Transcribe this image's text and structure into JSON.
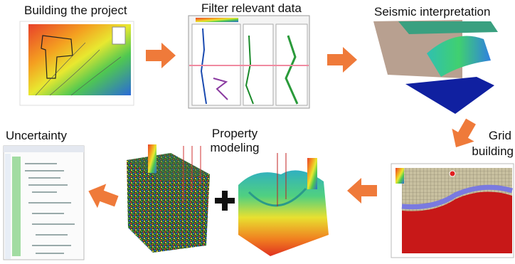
{
  "steps": [
    {
      "lines": [
        "Building the project"
      ]
    },
    {
      "lines": [
        "Filter relevant data"
      ]
    },
    {
      "lines": [
        "Seismic interpretation"
      ]
    },
    {
      "lines": [
        "Grid",
        "building"
      ]
    },
    {
      "lines": [
        "Property",
        "modeling"
      ]
    },
    {
      "lines": [
        "Uncertainty"
      ]
    }
  ]
}
